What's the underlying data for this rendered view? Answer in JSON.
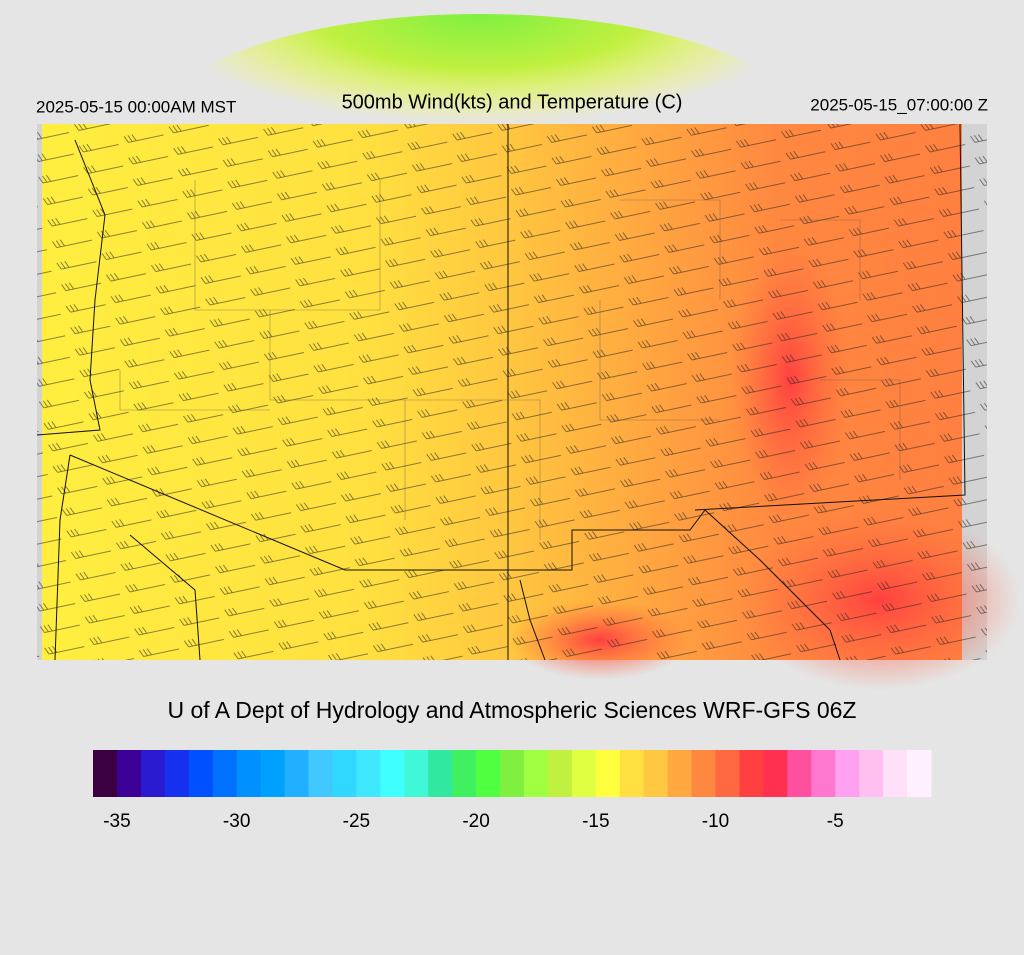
{
  "map": {
    "header_left": "2025-05-15 00:00AM MST",
    "title": "500mb Wind(kts) and Temperature (C)",
    "header_right": "2025-05-15_07:00:00 Z",
    "footer": "U of A Dept of Hydrology and Atmospheric Sciences WRF-GFS 06Z",
    "colorbar": {
      "range": [
        -36,
        -1
      ],
      "ticks": [
        -35,
        -30,
        -25,
        -20,
        -15,
        -10,
        -5
      ],
      "colors": [
        "#3a0040",
        "#3c0096",
        "#2a1ad0",
        "#1530ee",
        "#0050ff",
        "#0070ff",
        "#0090ff",
        "#00a0ff",
        "#20b0ff",
        "#40c8ff",
        "#30d8ff",
        "#40e8ff",
        "#40ffff",
        "#40f8d8",
        "#30e8a0",
        "#40f060",
        "#50ff40",
        "#80f040",
        "#a0ff40",
        "#c0f040",
        "#e0ff40",
        "#ffff40",
        "#ffe040",
        "#ffc840",
        "#ffa840",
        "#ff8840",
        "#ff6840",
        "#ff4040",
        "#ff3050",
        "#ff50a0",
        "#ff78d0",
        "#ffa0f0",
        "#ffc0f0",
        "#ffe0f8",
        "#fff0ff"
      ]
    }
  }
}
